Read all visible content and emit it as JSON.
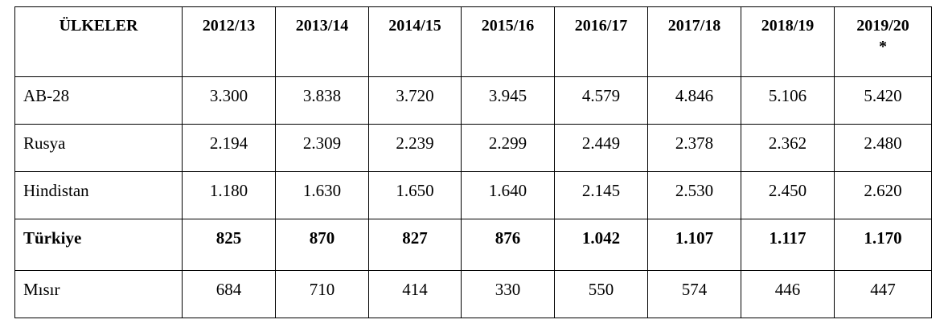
{
  "table": {
    "header": [
      "ÜLKELER",
      "2012/13",
      "2013/14",
      "2014/15",
      "2015/16",
      "2016/17",
      "2017/18",
      "2018/19",
      "2019/20\n*"
    ],
    "rows": [
      [
        "AB-28",
        "3.300",
        "3.838",
        "3.720",
        "3.945",
        "4.579",
        "4.846",
        "5.106",
        "5.420"
      ],
      [
        "Rusya",
        "2.194",
        "2.309",
        "2.239",
        "2.299",
        "2.449",
        "2.378",
        "2.362",
        "2.480"
      ],
      [
        "Hindistan",
        "1.180",
        "1.630",
        "1.650",
        "1.640",
        "2.145",
        "2.530",
        "2.450",
        "2.620"
      ],
      [
        "Türkiye",
        "825",
        "870",
        "827",
        "876",
        "1.042",
        "1.107",
        "1.117",
        "1.170"
      ],
      [
        "Mısır",
        "684",
        "710",
        "414",
        "330",
        "550",
        "574",
        "446",
        "447"
      ]
    ],
    "bold_rows": [
      3
    ]
  }
}
